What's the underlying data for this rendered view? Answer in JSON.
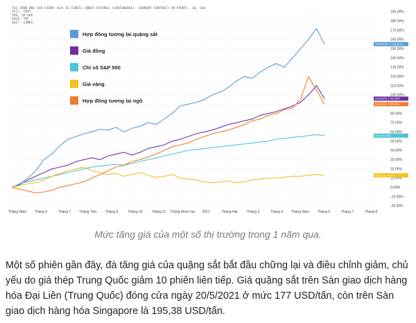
{
  "chart_data": {
    "type": "line",
    "header_lines": [
      "TSI IRON ORE CFR CHINA (62% FE FINES) INDEX FUTURES (CONTINUOUS): CURRENT CONTRACT IN FRONT), 1D, SGX",
      "ZC1!, CBOT",
      "SPX, SP:SPX",
      "GOLD, TVC",
      "HG1!, COMEX"
    ],
    "x_ticks": [
      "Tháng Năm",
      "Tháng 6",
      "Tháng 7",
      "Tháng Tám",
      "Tháng 9",
      "Tháng 10",
      "Tháng 11",
      "Tháng Mười hai",
      "2021",
      "Tháng Hai",
      "Tháng 3",
      "Tháng 4",
      "Tháng Năm",
      "Tháng 6",
      "Tháng 7",
      "Tháng 8"
    ],
    "y_ticks": [
      "190.00%",
      "180.00%",
      "170.00%",
      "160.00%",
      "150.00%",
      "140.00%",
      "130.00%",
      "120.00%",
      "110.00%",
      "100.00%",
      "90.00%",
      "80.00%",
      "70.00%",
      "60.00%",
      "50.00%",
      "40.00%",
      "30.00%",
      "20.00%",
      "10.00%",
      "0.00%",
      "-10.00%",
      "-20.00%"
    ],
    "ylim": [
      -20,
      190
    ],
    "legend_position": "top-left",
    "series": [
      {
        "name": "Hợp đồng tương lai quặng sắt",
        "color": "#5b9bd5",
        "end_label": "TFPA2021 1 155.91%",
        "values": [
          0,
          4,
          10,
          18,
          30,
          36,
          45,
          52,
          55,
          58,
          60,
          63,
          62,
          65,
          60,
          64,
          66,
          70,
          68,
          74,
          80,
          88,
          90,
          92,
          95,
          100,
          103,
          108,
          115,
          120,
          118,
          125,
          130,
          134,
          130,
          140,
          150,
          160,
          172,
          155
        ]
      },
      {
        "name": "Giá đồng",
        "color": "#7030a0",
        "end_label": "HGA2021 1 95.56%",
        "values": [
          0,
          3,
          8,
          12,
          16,
          20,
          22,
          24,
          28,
          30,
          32,
          30,
          34,
          36,
          38,
          35,
          38,
          42,
          44,
          46,
          50,
          52,
          55,
          58,
          60,
          62,
          65,
          68,
          70,
          72,
          74,
          78,
          80,
          82,
          85,
          88,
          92,
          100,
          110,
          96
        ]
      },
      {
        "name": "Chỉ số S&P 500",
        "color": "#4dc3d6",
        "end_label": "SPX 56.39%",
        "values": [
          0,
          4,
          6,
          8,
          10,
          12,
          14,
          16,
          18,
          20,
          22,
          23,
          24,
          25,
          24,
          26,
          28,
          30,
          32,
          34,
          36,
          38,
          40,
          41,
          42,
          43,
          44,
          45,
          46,
          47,
          48,
          49,
          50,
          52,
          53,
          54,
          55,
          56,
          57,
          56
        ]
      },
      {
        "name": "Giá vàng",
        "color": "#f4c023",
        "end_label": "GOLD 12.71%",
        "values": [
          0,
          2,
          4,
          5,
          8,
          12,
          15,
          18,
          20,
          22,
          18,
          16,
          14,
          15,
          12,
          14,
          16,
          13,
          11,
          12,
          14,
          10,
          9,
          8,
          6,
          5,
          6,
          7,
          5,
          6,
          8,
          9,
          10,
          10,
          11,
          12,
          12,
          13,
          14,
          13
        ]
      },
      {
        "name": "Hợp đồng tương lai ngô",
        "color": "#ed7d31",
        "end_label": "ZCA2021 1 90.43%",
        "values": [
          0,
          -2,
          -4,
          -6,
          -5,
          -3,
          0,
          2,
          4,
          6,
          10,
          14,
          18,
          22,
          24,
          28,
          30,
          33,
          36,
          40,
          44,
          46,
          48,
          52,
          55,
          58,
          60,
          62,
          65,
          68,
          72,
          74,
          78,
          80,
          84,
          86,
          95,
          120,
          105,
          90
        ]
      }
    ]
  },
  "caption": "Mức tăng giá của một số thị trường trong 1 năm qua.",
  "article": "Một số phiên gần đây, đà tăng giá của quặng sắt bắt đầu chững lại và điều chỉnh giảm, chủ yếu do giá thép Trung Quốc giảm 10 phiên liên tiếp. Giá quặng sắt trên Sàn giao dịch hàng hóa Đại Liên (Trung Quốc) đóng cửa ngày 20/5/2021 ở mức 177 USD/tấn, còn trên Sàn giao dịch hàng hóa Singapore là 195,38 USD/tấn."
}
